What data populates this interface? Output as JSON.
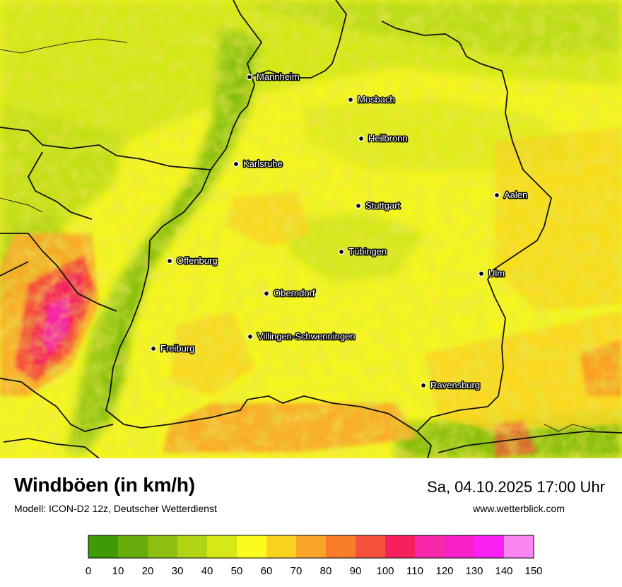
{
  "map": {
    "cities": [
      {
        "name": "Mannheim"
      },
      {
        "name": "Mosbach"
      },
      {
        "name": "Heilbronn"
      },
      {
        "name": "Karlsruhe"
      },
      {
        "name": "Stuttgart"
      },
      {
        "name": "Aalen"
      },
      {
        "name": "Tübingen"
      },
      {
        "name": "Offenburg"
      },
      {
        "name": "Ulm"
      },
      {
        "name": "Oberndorf"
      },
      {
        "name": "Villingen-Schwenningen"
      },
      {
        "name": "Freiburg"
      },
      {
        "name": "Ravensburg"
      }
    ]
  },
  "footer": {
    "title": "Windböen (in km/h)",
    "model": "Modell: ICON-D2 12z, Deutscher Wetterdienst",
    "datetime": "Sa, 04.10.2025 17:00 Uhr",
    "website": "www.wetterblick.com"
  },
  "legend": {
    "ticks": [
      "0",
      "10",
      "20",
      "30",
      "40",
      "50",
      "60",
      "70",
      "80",
      "90",
      "100",
      "110",
      "120",
      "130",
      "140",
      "150"
    ],
    "colors": [
      "#3f9a06",
      "#66ac0b",
      "#8cbf10",
      "#b1d414",
      "#d6e816",
      "#fbfb1e",
      "#fad31f",
      "#f9a52a",
      "#f97c2a",
      "#f6513a",
      "#f6215c",
      "#f728a9",
      "#f821c9",
      "#fa20f4",
      "#fb85f3"
    ]
  }
}
